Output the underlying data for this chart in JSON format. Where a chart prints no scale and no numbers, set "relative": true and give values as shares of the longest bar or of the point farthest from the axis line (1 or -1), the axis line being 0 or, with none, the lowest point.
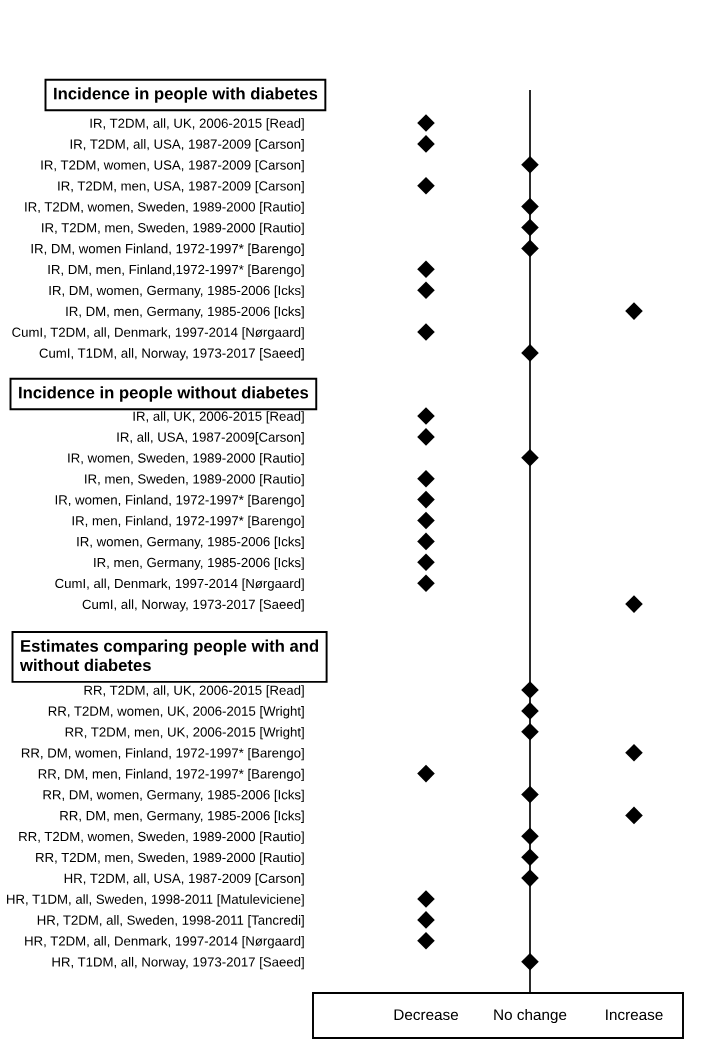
{
  "chart_data": [
    {
      "type": "scatter",
      "orientation": "horizontal",
      "relative": true,
      "title": "Incidence in people with diabetes",
      "categories": [
        "IR, T2DM, all, UK, 2006-2015 [Read]",
        "IR, T2DM, all, USA, 1987-2009 [Carson]",
        "IR, T2DM, women, USA, 1987-2009 [Carson]",
        "IR, T2DM, men, USA, 1987-2009 [Carson]",
        "IR, T2DM, women, Sweden, 1989-2000 [Rautio]",
        "IR, T2DM, men, Sweden, 1989-2000 [Rautio]",
        "IR, DM, women Finland, 1972-1997* [Barengo]",
        "IR, DM, men, Finland,1972-1997* [Barengo]",
        "IR, DM, women, Germany, 1985-2006 [Icks]",
        "IR, DM, men, Germany, 1985-2006 [Icks]",
        "CumI, T2DM, all, Denmark, 1997-2014 [Nørgaard]",
        "CumI, T1DM, all, Norway, 1973-2017 [Saeed]"
      ],
      "series": [
        {
          "color": "#000000",
          "values": [
            -1,
            -1,
            0,
            -1,
            0,
            0,
            0,
            -1,
            -1,
            1,
            -1,
            0
          ]
        }
      ],
      "tick_labels": "y",
      "marker": "diamond"
    },
    {
      "type": "scatter",
      "orientation": "horizontal",
      "relative": true,
      "title": "Incidence in people without diabetes",
      "categories": [
        "IR, all, UK, 2006-2015 [Read]",
        "IR, all, USA, 1987-2009[Carson]",
        "IR, women, Sweden, 1989-2000 [Rautio]",
        "IR, men, Sweden, 1989-2000 [Rautio]",
        "IR, women, Finland, 1972-1997* [Barengo]",
        "IR, men, Finland, 1972-1997* [Barengo]",
        "IR, women, Germany, 1985-2006 [Icks]",
        "IR, men, Germany, 1985-2006 [Icks]",
        "CumI, all, Denmark, 1997-2014 [Nørgaard]",
        "CumI, all, Norway, 1973-2017 [Saeed]"
      ],
      "series": [
        {
          "color": "#000000",
          "values": [
            -1,
            -1,
            0,
            -1,
            -1,
            -1,
            -1,
            -1,
            -1,
            1
          ]
        }
      ],
      "tick_labels": "y",
      "marker": "diamond"
    },
    {
      "type": "scatter",
      "orientation": "horizontal",
      "relative": true,
      "title": "Estimates comparing people with and\nwithout diabetes",
      "categories": [
        "RR, T2DM, all, UK, 2006-2015 [Read]",
        "RR, T2DM, women, UK, 2006-2015 [Wright]",
        "RR, T2DM, men, UK, 2006-2015 [Wright]",
        "RR, DM, women, Finland, 1972-1997* [Barengo]",
        "RR, DM, men, Finland, 1972-1997* [Barengo]",
        "RR, DM, women, Germany, 1985-2006 [Icks]",
        "RR, DM, men, Germany, 1985-2006 [Icks]",
        "RR, T2DM, women, Sweden, 1989-2000 [Rautio]",
        "RR, T2DM, men, Sweden, 1989-2000 [Rautio]",
        "HR, T2DM, all, USA, 1987-2009 [Carson]",
        "HR, T1DM, all, Sweden, 1998-2011 [Matuleviciene]",
        "HR, T2DM, all, Sweden, 1998-2011 [Tancredi]",
        "HR, T2DM, all, Denmark, 1997-2014 [Nørgaard]",
        "HR, T1DM, all, Norway, 1973-2017 [Saeed]"
      ],
      "series": [
        {
          "color": "#000000",
          "values": [
            0,
            0,
            0,
            1,
            -1,
            0,
            1,
            0,
            0,
            0,
            -1,
            -1,
            -1,
            0
          ]
        }
      ],
      "tick_labels": "y",
      "marker": "diamond",
      "annotations": [
        "Decrease",
        "No change",
        "Increase"
      ]
    }
  ]
}
